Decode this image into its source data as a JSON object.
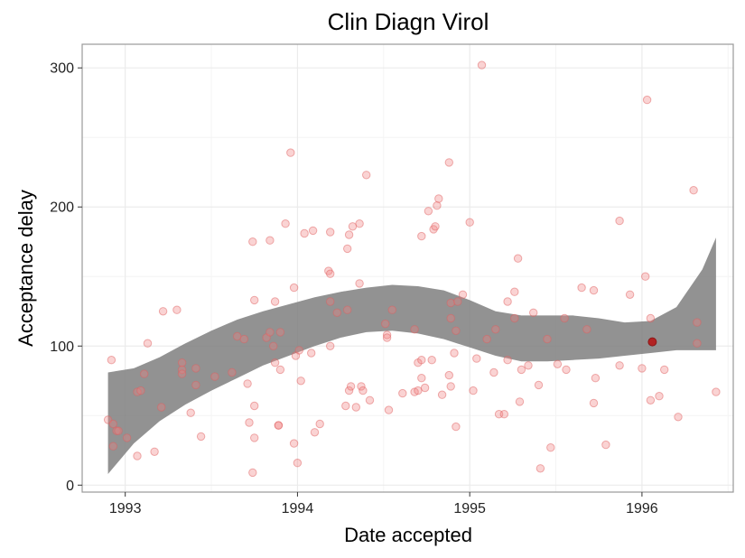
{
  "chart_data": {
    "type": "scatter",
    "title": "Clin Diagn Virol",
    "xlabel": "Date accepted",
    "ylabel": "Acceptance delay",
    "xlim": [
      1992.75,
      1996.53
    ],
    "ylim": [
      -5,
      317
    ],
    "x_ticks": [
      1993,
      1994,
      1995,
      1996
    ],
    "x_tick_labels": [
      "1993",
      "1994",
      "1995",
      "1996"
    ],
    "y_ticks": [
      0,
      100,
      200,
      300
    ],
    "y_tick_labels": [
      "0",
      "100",
      "200",
      "300"
    ],
    "grid": true,
    "legend": "none",
    "colors": {
      "point": "#f08080",
      "point_stroke": "#e06060",
      "highlight": "#b22222",
      "band": "#7f7f7f",
      "grid": "#ebebeb",
      "panel_border": "#999999"
    },
    "series": [
      {
        "values": [
          [
            1992.9,
            47
          ],
          [
            1992.92,
            90
          ],
          [
            1992.93,
            28
          ],
          [
            1992.93,
            44
          ],
          [
            1992.95,
            39
          ],
          [
            1992.96,
            39
          ],
          [
            1993.01,
            34
          ],
          [
            1993.07,
            21
          ],
          [
            1993.07,
            67
          ],
          [
            1993.09,
            68
          ],
          [
            1993.11,
            80
          ],
          [
            1993.13,
            102
          ],
          [
            1993.17,
            24
          ],
          [
            1993.21,
            56
          ],
          [
            1993.22,
            125
          ],
          [
            1993.3,
            126
          ],
          [
            1993.33,
            83
          ],
          [
            1993.33,
            88
          ],
          [
            1993.33,
            80
          ],
          [
            1993.38,
            52
          ],
          [
            1993.41,
            72
          ],
          [
            1993.41,
            84
          ],
          [
            1993.44,
            35
          ],
          [
            1993.52,
            78
          ],
          [
            1993.62,
            81
          ],
          [
            1993.65,
            107
          ],
          [
            1993.69,
            105
          ],
          [
            1993.71,
            73
          ],
          [
            1993.72,
            45
          ],
          [
            1993.74,
            9
          ],
          [
            1993.74,
            175
          ],
          [
            1993.75,
            133
          ],
          [
            1993.75,
            34
          ],
          [
            1993.75,
            57
          ],
          [
            1993.82,
            106
          ],
          [
            1993.84,
            110
          ],
          [
            1993.84,
            176
          ],
          [
            1993.86,
            100
          ],
          [
            1993.87,
            88
          ],
          [
            1993.87,
            132
          ],
          [
            1993.89,
            43
          ],
          [
            1993.89,
            43
          ],
          [
            1993.9,
            83
          ],
          [
            1993.9,
            110
          ],
          [
            1993.93,
            188
          ],
          [
            1993.96,
            239
          ],
          [
            1993.98,
            142
          ],
          [
            1993.98,
            30
          ],
          [
            1993.99,
            93
          ],
          [
            1994.0,
            16
          ],
          [
            1994.01,
            97
          ],
          [
            1994.02,
            75
          ],
          [
            1994.04,
            181
          ],
          [
            1994.08,
            95
          ],
          [
            1994.09,
            183
          ],
          [
            1994.1,
            38
          ],
          [
            1994.13,
            44
          ],
          [
            1994.18,
            154
          ],
          [
            1994.19,
            100
          ],
          [
            1994.19,
            152
          ],
          [
            1994.19,
            182
          ],
          [
            1994.19,
            132
          ],
          [
            1994.23,
            124
          ],
          [
            1994.28,
            57
          ],
          [
            1994.29,
            126
          ],
          [
            1994.29,
            170
          ],
          [
            1994.3,
            180
          ],
          [
            1994.3,
            68
          ],
          [
            1994.31,
            71
          ],
          [
            1994.32,
            186
          ],
          [
            1994.34,
            56
          ],
          [
            1994.36,
            145
          ],
          [
            1994.36,
            188
          ],
          [
            1994.37,
            71
          ],
          [
            1994.38,
            68
          ],
          [
            1994.4,
            223
          ],
          [
            1994.42,
            61
          ],
          [
            1994.51,
            116
          ],
          [
            1994.52,
            108
          ],
          [
            1994.52,
            106
          ],
          [
            1994.53,
            54
          ],
          [
            1994.55,
            126
          ],
          [
            1994.61,
            66
          ],
          [
            1994.68,
            112
          ],
          [
            1994.68,
            67
          ],
          [
            1994.7,
            68
          ],
          [
            1994.7,
            88
          ],
          [
            1994.72,
            77
          ],
          [
            1994.72,
            179
          ],
          [
            1994.72,
            90
          ],
          [
            1994.74,
            70
          ],
          [
            1994.76,
            197
          ],
          [
            1994.78,
            90
          ],
          [
            1994.79,
            184
          ],
          [
            1994.8,
            186
          ],
          [
            1994.81,
            201
          ],
          [
            1994.82,
            206
          ],
          [
            1994.84,
            65
          ],
          [
            1994.88,
            79
          ],
          [
            1994.88,
            232
          ],
          [
            1994.89,
            71
          ],
          [
            1994.89,
            120
          ],
          [
            1994.89,
            131
          ],
          [
            1994.91,
            95
          ],
          [
            1994.92,
            42
          ],
          [
            1994.92,
            111
          ],
          [
            1994.93,
            132
          ],
          [
            1994.96,
            137
          ],
          [
            1995.0,
            189
          ],
          [
            1995.02,
            68
          ],
          [
            1995.04,
            91
          ],
          [
            1995.07,
            302
          ],
          [
            1995.1,
            105
          ],
          [
            1995.14,
            81
          ],
          [
            1995.15,
            112
          ],
          [
            1995.17,
            51
          ],
          [
            1995.2,
            51
          ],
          [
            1995.22,
            90
          ],
          [
            1995.22,
            132
          ],
          [
            1995.26,
            139
          ],
          [
            1995.26,
            120
          ],
          [
            1995.28,
            163
          ],
          [
            1995.29,
            60
          ],
          [
            1995.3,
            83
          ],
          [
            1995.34,
            86
          ],
          [
            1995.37,
            124
          ],
          [
            1995.4,
            72
          ],
          [
            1995.41,
            12
          ],
          [
            1995.45,
            105
          ],
          [
            1995.47,
            27
          ],
          [
            1995.51,
            87
          ],
          [
            1995.55,
            120
          ],
          [
            1995.56,
            83
          ],
          [
            1995.65,
            142
          ],
          [
            1995.68,
            112
          ],
          [
            1995.72,
            140
          ],
          [
            1995.72,
            59
          ],
          [
            1995.73,
            77
          ],
          [
            1995.79,
            29
          ],
          [
            1995.87,
            86
          ],
          [
            1995.87,
            190
          ],
          [
            1995.93,
            137
          ],
          [
            1996.0,
            84
          ],
          [
            1996.02,
            150
          ],
          [
            1996.03,
            277
          ],
          [
            1996.05,
            120
          ],
          [
            1996.05,
            61
          ],
          [
            1996.1,
            64
          ],
          [
            1996.13,
            83
          ],
          [
            1996.21,
            49
          ],
          [
            1996.3,
            212
          ],
          [
            1996.32,
            117
          ],
          [
            1996.32,
            102
          ],
          [
            1996.43,
            67
          ]
        ]
      }
    ],
    "highlight_point": [
      1996.06,
      103
    ],
    "smooth_band": {
      "x": [
        1992.9,
        1993.05,
        1993.2,
        1993.35,
        1993.5,
        1993.65,
        1993.8,
        1993.95,
        1994.1,
        1994.25,
        1994.4,
        1994.55,
        1994.7,
        1994.85,
        1995.0,
        1995.15,
        1995.3,
        1995.45,
        1995.6,
        1995.75,
        1995.9,
        1996.05,
        1996.2,
        1996.35,
        1996.43
      ],
      "upper": [
        81,
        84,
        92,
        102,
        111,
        119,
        125,
        130,
        135,
        139,
        142,
        144,
        143,
        140,
        133,
        125,
        122,
        122,
        122,
        120,
        117,
        118,
        128,
        155,
        178
      ],
      "lower": [
        8,
        30,
        46,
        58,
        68,
        77,
        86,
        93,
        100,
        106,
        110,
        111,
        109,
        105,
        99,
        93,
        89,
        89,
        90,
        91,
        93,
        95,
        97,
        97,
        97
      ]
    }
  }
}
